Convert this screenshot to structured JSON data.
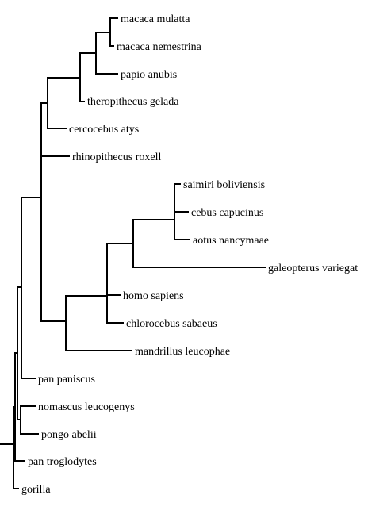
{
  "tree": {
    "line_color": "#000000",
    "background_color": "#ffffff",
    "leaves": [
      "macaca mulatta",
      "macaca nemestrina",
      "papio anubis",
      "theropithecus gelada",
      "cercocebus atys",
      "rhinopithecus roxell",
      "saimiri boliviensis",
      "cebus capucinus",
      "aotus nancymaae",
      "galeopterus variegat",
      "homo sapiens",
      "chlorocebus sabaeus",
      "mandrillus leucophae",
      "pan paniscus",
      "nomascus leucogenys",
      "pongo abelii",
      "pan troglodytes",
      "gorilla"
    ]
  }
}
